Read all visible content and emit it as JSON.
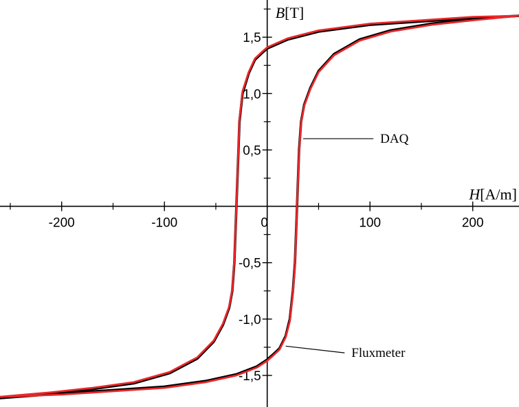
{
  "chart_data": {
    "type": "line",
    "title": "",
    "xlabel": {
      "var": "H",
      "unit": "[A/m]"
    },
    "ylabel": {
      "var": "B",
      "unit": "[T]"
    },
    "xlim": [
      -260,
      245
    ],
    "ylim": [
      -1.78,
      1.83
    ],
    "grid": false,
    "x_tick_labels": [
      {
        "value": -200,
        "label": "-200"
      },
      {
        "value": -100,
        "label": "-100"
      },
      {
        "value": 0,
        "label": "0"
      },
      {
        "value": 100,
        "label": "100"
      },
      {
        "value": 200,
        "label": "200"
      }
    ],
    "x_minor_ticks": [
      -250,
      -150,
      -50,
      50,
      150
    ],
    "y_tick_labels": [
      {
        "value": 1.5,
        "label": "1,5"
      },
      {
        "value": 1.0,
        "label": "1,0"
      },
      {
        "value": 0.5,
        "label": "0,5"
      },
      {
        "value": -0.5,
        "label": "-0,5"
      },
      {
        "value": -1.0,
        "label": "-1,0"
      },
      {
        "value": -1.5,
        "label": "-1,5"
      }
    ],
    "y_minor_ticks": [
      1.75,
      1.25,
      0.75,
      0.25,
      -0.25,
      -0.75,
      -1.25
    ],
    "series": [
      {
        "name": "DAQ",
        "color": "#000000",
        "ascending": [
          [
            -260,
            -1.7
          ],
          [
            -200,
            -1.66
          ],
          [
            -150,
            -1.63
          ],
          [
            -100,
            -1.6
          ],
          [
            -60,
            -1.55
          ],
          [
            -30,
            -1.49
          ],
          [
            -10,
            -1.42
          ],
          [
            0,
            -1.36
          ],
          [
            5,
            -1.32
          ],
          [
            12,
            -1.26
          ],
          [
            18,
            -1.15
          ],
          [
            22,
            -1.0
          ],
          [
            25,
            -0.75
          ],
          [
            27,
            -0.5
          ],
          [
            28,
            -0.25
          ],
          [
            29,
            0.0
          ],
          [
            30,
            0.25
          ],
          [
            31,
            0.5
          ],
          [
            33,
            0.75
          ],
          [
            36,
            0.9
          ],
          [
            42,
            1.05
          ],
          [
            50,
            1.2
          ],
          [
            65,
            1.35
          ],
          [
            90,
            1.48
          ],
          [
            120,
            1.56
          ],
          [
            160,
            1.62
          ],
          [
            200,
            1.66
          ],
          [
            245,
            1.69
          ]
        ],
        "descending": [
          [
            245,
            1.69
          ],
          [
            200,
            1.67
          ],
          [
            150,
            1.64
          ],
          [
            100,
            1.61
          ],
          [
            50,
            1.55
          ],
          [
            20,
            1.48
          ],
          [
            0,
            1.4
          ],
          [
            -5,
            1.36
          ],
          [
            -12,
            1.3
          ],
          [
            -18,
            1.18
          ],
          [
            -24,
            1.0
          ],
          [
            -27,
            0.75
          ],
          [
            -28,
            0.5
          ],
          [
            -29,
            0.25
          ],
          [
            -30,
            0.0
          ],
          [
            -31,
            -0.25
          ],
          [
            -32,
            -0.5
          ],
          [
            -34,
            -0.75
          ],
          [
            -37,
            -0.9
          ],
          [
            -43,
            -1.05
          ],
          [
            -52,
            -1.2
          ],
          [
            -68,
            -1.35
          ],
          [
            -95,
            -1.48
          ],
          [
            -130,
            -1.57
          ],
          [
            -170,
            -1.62
          ],
          [
            -210,
            -1.66
          ],
          [
            -260,
            -1.7
          ]
        ]
      },
      {
        "name": "Fluxmeter",
        "color": "#e8282b",
        "ascending": [
          [
            -260,
            -1.69
          ],
          [
            -200,
            -1.67
          ],
          [
            -150,
            -1.64
          ],
          [
            -100,
            -1.61
          ],
          [
            -60,
            -1.56
          ],
          [
            -30,
            -1.5
          ],
          [
            -10,
            -1.43
          ],
          [
            0,
            -1.37
          ],
          [
            5,
            -1.33
          ],
          [
            12,
            -1.27
          ],
          [
            18,
            -1.16
          ],
          [
            22,
            -1.02
          ],
          [
            25,
            -0.77
          ],
          [
            27,
            -0.52
          ],
          [
            28,
            -0.26
          ],
          [
            29,
            0.0
          ],
          [
            30,
            0.24
          ],
          [
            31,
            0.48
          ],
          [
            33,
            0.74
          ],
          [
            36,
            0.89
          ],
          [
            42,
            1.04
          ],
          [
            50,
            1.19
          ],
          [
            65,
            1.34
          ],
          [
            90,
            1.47
          ],
          [
            120,
            1.55
          ],
          [
            160,
            1.61
          ],
          [
            200,
            1.65
          ],
          [
            245,
            1.69
          ]
        ],
        "descending": [
          [
            245,
            1.69
          ],
          [
            200,
            1.68
          ],
          [
            150,
            1.65
          ],
          [
            100,
            1.62
          ],
          [
            50,
            1.56
          ],
          [
            20,
            1.49
          ],
          [
            0,
            1.41
          ],
          [
            -5,
            1.37
          ],
          [
            -12,
            1.31
          ],
          [
            -18,
            1.19
          ],
          [
            -24,
            1.02
          ],
          [
            -27,
            0.77
          ],
          [
            -28,
            0.52
          ],
          [
            -29,
            0.26
          ],
          [
            -30,
            0.0
          ],
          [
            -31,
            -0.24
          ],
          [
            -32,
            -0.48
          ],
          [
            -34,
            -0.74
          ],
          [
            -37,
            -0.89
          ],
          [
            -43,
            -1.04
          ],
          [
            -52,
            -1.19
          ],
          [
            -68,
            -1.34
          ],
          [
            -95,
            -1.47
          ],
          [
            -130,
            -1.56
          ],
          [
            -170,
            -1.61
          ],
          [
            -210,
            -1.65
          ],
          [
            -260,
            -1.69
          ]
        ]
      }
    ],
    "annotations": [
      {
        "text": "DAQ",
        "point": [
          35,
          0.6
        ],
        "label_at": [
          110,
          0.6
        ]
      },
      {
        "text": "Fluxmeter",
        "point": [
          18,
          -1.24
        ],
        "label_at": [
          82,
          -1.3
        ]
      }
    ]
  }
}
